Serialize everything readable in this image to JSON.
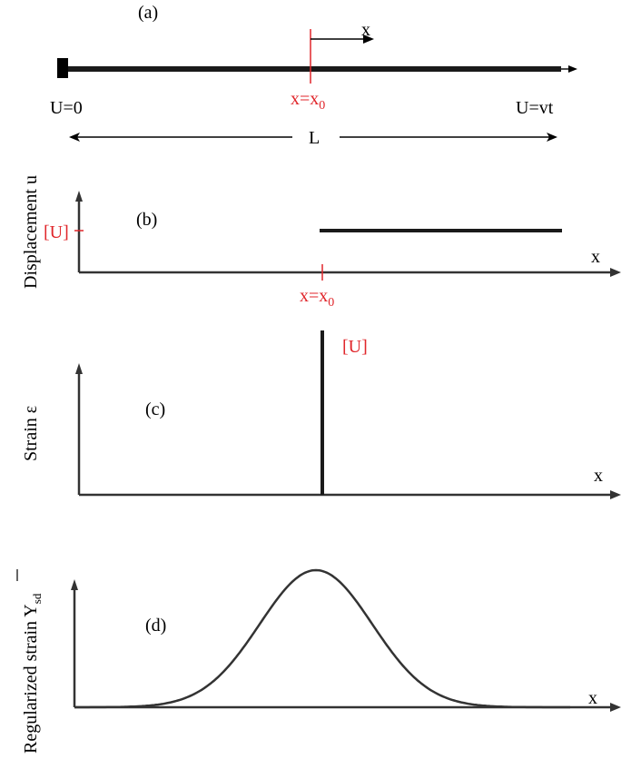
{
  "panel_a": {
    "tag": "(a)",
    "x_arrow_label": "x",
    "left_bc": "U=0",
    "right_bc": "U=vt",
    "position_main": "x=x",
    "position_sub": "0",
    "length_label": "L"
  },
  "panel_b": {
    "tag": "(b)",
    "ylabel": "Displacement u",
    "jump_label": "[U]",
    "xlabel": "x",
    "position_main": "x=x",
    "position_sub": "0"
  },
  "panel_c": {
    "tag": "(c)",
    "ylabel": "Strain ε",
    "jump_label": "[U]",
    "xlabel": "x"
  },
  "panel_d": {
    "tag": "(d)",
    "ylabel_main": "Regularized strain Y",
    "ylabel_sub": "sd",
    "xlabel": "x"
  },
  "colors": {
    "accent_red": "#e0262b",
    "line": "#1a1a1a"
  }
}
